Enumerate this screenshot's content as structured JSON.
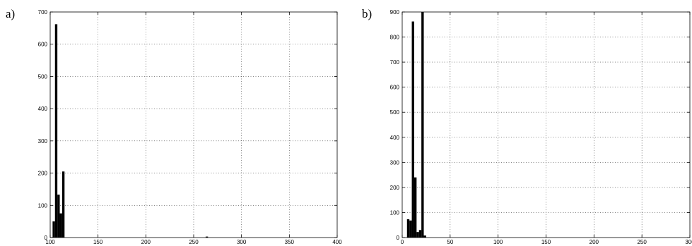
{
  "panels": [
    {
      "label": "a)"
    },
    {
      "label": "b)"
    }
  ],
  "chart_data": [
    {
      "type": "bar",
      "title": "",
      "xlabel": "",
      "ylabel": "",
      "xlim": [
        100,
        400
      ],
      "ylim": [
        0,
        700
      ],
      "xticks": [
        100,
        150,
        200,
        250,
        300,
        350,
        400
      ],
      "yticks": [
        0,
        100,
        200,
        300,
        400,
        500,
        600,
        700
      ],
      "grid": true,
      "bin_width": 2.5,
      "bar_color": "#000000",
      "x": [
        103.75,
        106.25,
        108.75,
        111.25,
        113.75,
        263.75
      ],
      "values": [
        50,
        662,
        133,
        75,
        205,
        3
      ]
    },
    {
      "type": "bar",
      "title": "",
      "xlabel": "",
      "ylabel": "",
      "xlim": [
        0,
        300
      ],
      "ylim": [
        0,
        900
      ],
      "xticks": [
        0,
        50,
        100,
        150,
        200,
        250,
        300
      ],
      "yticks": [
        0,
        100,
        200,
        300,
        400,
        500,
        600,
        700,
        800,
        900
      ],
      "grid": true,
      "bin_width": 2.5,
      "bar_color": "#000000",
      "x": [
        6.25,
        8.75,
        11.25,
        13.75,
        16.25,
        18.75,
        21.25,
        23.75
      ],
      "values": [
        73,
        68,
        862,
        240,
        22,
        30,
        900,
        8
      ]
    }
  ]
}
